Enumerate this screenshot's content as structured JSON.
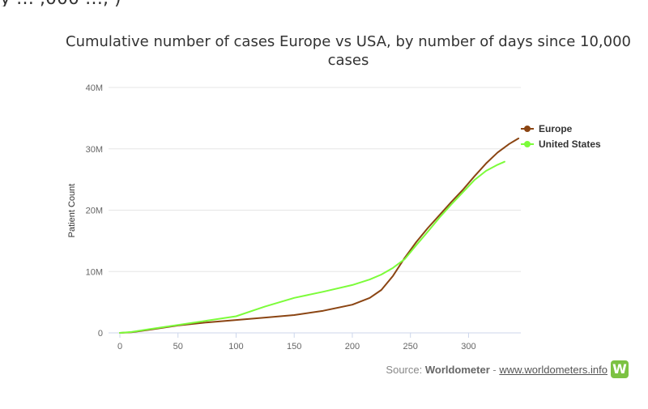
{
  "header": {
    "fragment": "y … ,000 …, )"
  },
  "chart_data": {
    "type": "line",
    "title": "Cumulative number of cases Europe vs USA, by number of days since 10,000 cases",
    "xlabel": "",
    "ylabel": "Patient Count",
    "xlim": [
      0,
      345
    ],
    "ylim": [
      0,
      40000000
    ],
    "x_ticks": [
      "0",
      "50",
      "100",
      "150",
      "200",
      "250",
      "300"
    ],
    "y_ticks": [
      "0",
      "10M",
      "20M",
      "30M",
      "40M"
    ],
    "grid": "horizontal",
    "legend": "top-right",
    "series": [
      {
        "name": "Europe",
        "color": "#8B4513",
        "x": [
          0,
          10,
          25,
          50,
          75,
          100,
          125,
          150,
          175,
          200,
          215,
          225,
          235,
          245,
          255,
          265,
          275,
          285,
          295,
          305,
          315,
          325,
          335,
          343
        ],
        "y": [
          0,
          100000,
          500000,
          1200000,
          1700000,
          2100000,
          2500000,
          2900000,
          3600000,
          4600000,
          5700000,
          7000000,
          9300000,
          12200000,
          14800000,
          17100000,
          19200000,
          21300000,
          23300000,
          25500000,
          27600000,
          29400000,
          30800000,
          31700000
        ]
      },
      {
        "name": "United States",
        "color": "#7CFC3A",
        "x": [
          0,
          10,
          25,
          50,
          75,
          100,
          125,
          150,
          175,
          200,
          215,
          225,
          235,
          245,
          255,
          265,
          275,
          285,
          295,
          305,
          315,
          325,
          331
        ],
        "y": [
          0,
          150000,
          600000,
          1300000,
          2000000,
          2700000,
          4300000,
          5700000,
          6700000,
          7800000,
          8700000,
          9500000,
          10600000,
          12000000,
          14300000,
          16500000,
          18800000,
          20900000,
          22900000,
          24900000,
          26400000,
          27400000,
          27900000
        ]
      }
    ]
  },
  "source": {
    "prefix": "Source: ",
    "brand": "Worldometer",
    "separator": " - ",
    "link": "www.worldometers.info",
    "logo_letter": "W"
  }
}
